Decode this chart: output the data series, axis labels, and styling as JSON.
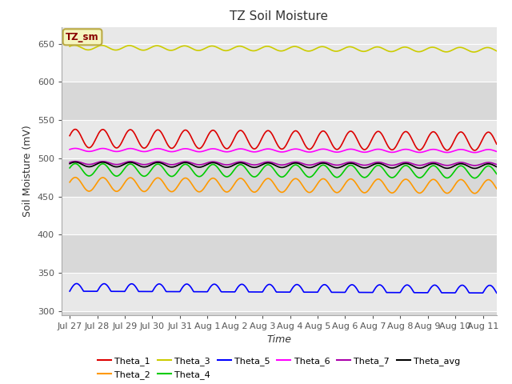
{
  "title": "TZ Soil Moisture",
  "xlabel": "Time",
  "ylabel": "Soil Moisture (mV)",
  "ylim": [
    295,
    672
  ],
  "yticks": [
    300,
    350,
    400,
    450,
    500,
    550,
    600,
    650
  ],
  "figure_color": "#ffffff",
  "band_colors": [
    "#e8e8e8",
    "#d8d8d8"
  ],
  "label_box": "TZ_sm",
  "label_box_bg": "#f5f5c0",
  "label_box_border": "#bbaa44",
  "label_box_text": "#880000",
  "lines": {
    "Theta_1": {
      "color": "#dd0000",
      "base": 526,
      "amp": 12,
      "period": 1.0,
      "trend": -0.25
    },
    "Theta_2": {
      "color": "#ff9900",
      "base": 466,
      "amp": 9,
      "period": 1.0,
      "trend": -0.2
    },
    "Theta_3": {
      "color": "#cccc00",
      "base": 645,
      "amp": 3,
      "period": 1.0,
      "trend": -0.2
    },
    "Theta_4": {
      "color": "#00cc00",
      "base": 485,
      "amp": 8,
      "period": 1.0,
      "trend": -0.2
    },
    "Theta_5": {
      "color": "#0000ff",
      "base": 326,
      "amp": 10,
      "period": 1.0,
      "trend": -0.15
    },
    "Theta_6": {
      "color": "#ff00ff",
      "base": 511,
      "amp": 2,
      "period": 1.0,
      "trend": -0.1
    },
    "Theta_7": {
      "color": "#aa00aa",
      "base": 494,
      "amp": 2,
      "period": 1.0,
      "trend": -0.1
    },
    "Theta_avg": {
      "color": "#000000",
      "base": 492,
      "amp": 3,
      "period": 1.0,
      "trend": -0.15
    }
  },
  "start_day": 0,
  "end_day": 15.5,
  "num_points": 800,
  "xtick_labels": [
    "Jul 27",
    "Jul 28",
    "Jul 29",
    "Jul 30",
    "Jul 31",
    "Aug 1",
    "Aug 2",
    "Aug 3",
    "Aug 4",
    "Aug 5",
    "Aug 6",
    "Aug 7",
    "Aug 8",
    "Aug 9",
    "Aug 10",
    "Aug 11"
  ],
  "xtick_positions": [
    0,
    1,
    2,
    3,
    4,
    5,
    6,
    7,
    8,
    9,
    10,
    11,
    12,
    13,
    14,
    15
  ]
}
